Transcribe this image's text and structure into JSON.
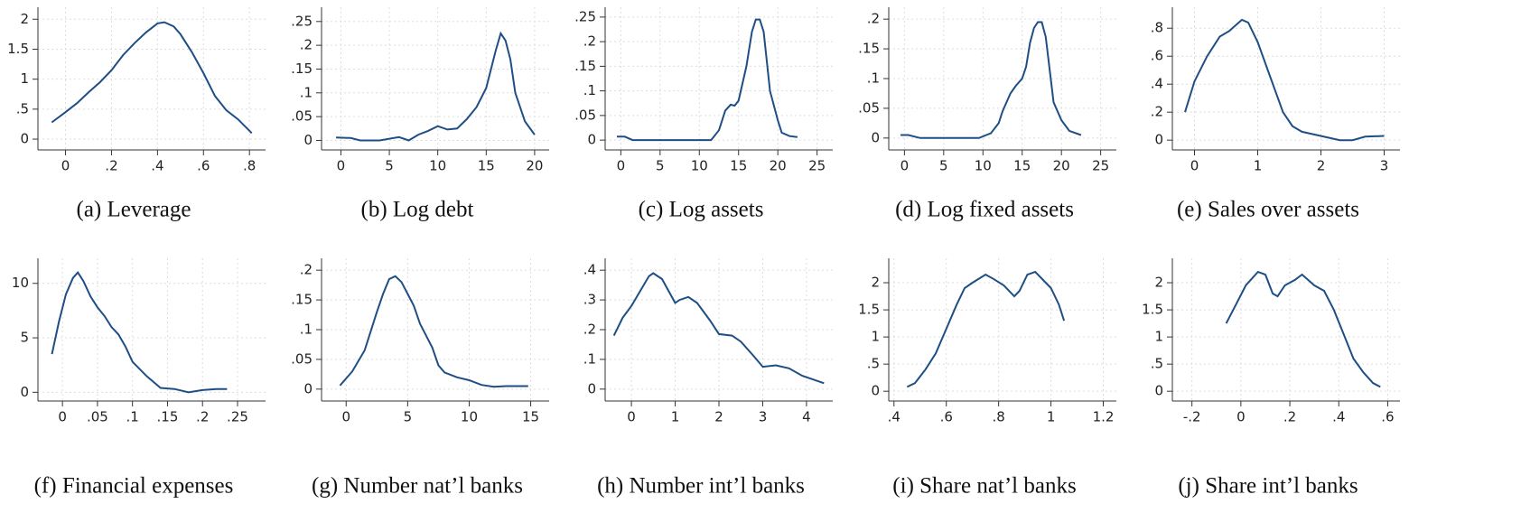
{
  "chart_data": [
    {
      "type": "line",
      "caption": "(a) Leverage",
      "color": "#1f4e85",
      "grid": true,
      "x": [
        -0.06,
        0,
        0.05,
        0.1,
        0.15,
        0.2,
        0.25,
        0.3,
        0.35,
        0.4,
        0.43,
        0.47,
        0.5,
        0.55,
        0.6,
        0.65,
        0.7,
        0.75,
        0.8,
        0.81
      ],
      "values": [
        0.28,
        0.45,
        0.6,
        0.78,
        0.95,
        1.15,
        1.4,
        1.6,
        1.78,
        1.93,
        1.95,
        1.88,
        1.75,
        1.45,
        1.1,
        0.72,
        0.48,
        0.33,
        0.14,
        0.1
      ],
      "xlim": [
        -0.12,
        0.87
      ],
      "ylim": [
        -0.18,
        2.2
      ],
      "xticks": [
        0,
        {
          "value": 0.2,
          "label": ".2"
        },
        {
          "value": 0.4,
          "label": ".4"
        },
        {
          "value": 0.6,
          "label": ".6"
        },
        {
          "value": 0.8,
          "label": ".8"
        }
      ],
      "yticks": [
        0,
        {
          "value": 0.5,
          "label": ".5"
        },
        1,
        1.5,
        2
      ]
    },
    {
      "type": "line",
      "caption": "(b) Log debt",
      "color": "#1f4e85",
      "grid": true,
      "x": [
        -0.5,
        1,
        2,
        4,
        6,
        7,
        8,
        9,
        10,
        11,
        12,
        13,
        14,
        15,
        16,
        16.5,
        17,
        17.5,
        18,
        19,
        20
      ],
      "values": [
        0.006,
        0.005,
        0,
        0,
        0.007,
        0,
        0.012,
        0.02,
        0.03,
        0.023,
        0.025,
        0.045,
        0.07,
        0.11,
        0.19,
        0.225,
        0.21,
        0.17,
        0.1,
        0.04,
        0.012
      ],
      "xlim": [
        -2,
        21.5
      ],
      "ylim": [
        -0.02,
        0.28
      ],
      "xticks": [
        0,
        5,
        10,
        15,
        20
      ],
      "yticks": [
        0,
        {
          "value": 0.05,
          "label": ".05"
        },
        {
          "value": 0.1,
          "label": ".1"
        },
        {
          "value": 0.15,
          "label": ".15"
        },
        {
          "value": 0.2,
          "label": ".2"
        },
        {
          "value": 0.25,
          "label": ".25"
        }
      ]
    },
    {
      "type": "line",
      "caption": "(c) Log assets",
      "color": "#1f4e85",
      "grid": true,
      "x": [
        -0.5,
        0.5,
        1.5,
        5,
        10,
        11.5,
        12.5,
        13.3,
        14,
        14.5,
        15,
        16,
        16.7,
        17.2,
        17.7,
        18.2,
        19,
        20,
        20.5,
        21.5,
        22.5
      ],
      "values": [
        0.007,
        0.007,
        0,
        0,
        0,
        0,
        0.02,
        0.06,
        0.072,
        0.07,
        0.08,
        0.15,
        0.22,
        0.245,
        0.245,
        0.22,
        0.1,
        0.04,
        0.015,
        0.008,
        0.006
      ],
      "xlim": [
        -2,
        27
      ],
      "ylim": [
        -0.02,
        0.27
      ],
      "xticks": [
        0,
        5,
        10,
        15,
        20,
        25
      ],
      "yticks": [
        0,
        {
          "value": 0.05,
          "label": ".05"
        },
        {
          "value": 0.1,
          "label": ".1"
        },
        {
          "value": 0.15,
          "label": ".15"
        },
        {
          "value": 0.2,
          "label": ".2"
        },
        {
          "value": 0.25,
          "label": ".25"
        }
      ]
    },
    {
      "type": "line",
      "caption": "(d) Log fixed assets",
      "color": "#1f4e85",
      "grid": true,
      "x": [
        -0.5,
        0.5,
        2,
        5,
        9.5,
        11,
        12,
        12.5,
        13.5,
        14.2,
        15,
        15.5,
        16,
        16.5,
        17,
        17.5,
        18,
        19,
        20,
        21,
        22.5
      ],
      "values": [
        0.005,
        0.005,
        0,
        0,
        0,
        0.008,
        0.025,
        0.045,
        0.075,
        0.088,
        0.1,
        0.12,
        0.16,
        0.185,
        0.195,
        0.195,
        0.17,
        0.06,
        0.03,
        0.012,
        0.005
      ],
      "xlim": [
        -2,
        27
      ],
      "ylim": [
        -0.02,
        0.22
      ],
      "xticks": [
        0,
        5,
        10,
        15,
        20,
        25
      ],
      "yticks": [
        0,
        {
          "value": 0.05,
          "label": ".05"
        },
        {
          "value": 0.1,
          "label": ".1"
        },
        {
          "value": 0.15,
          "label": ".15"
        },
        {
          "value": 0.2,
          "label": ".2"
        }
      ]
    },
    {
      "type": "line",
      "caption": "(e) Sales over assets",
      "color": "#1f4e85",
      "grid": true,
      "x": [
        -0.15,
        0,
        0.2,
        0.4,
        0.55,
        0.75,
        0.85,
        1,
        1.2,
        1.4,
        1.55,
        1.7,
        1.9,
        2.1,
        2.3,
        2.5,
        2.7,
        3
      ],
      "values": [
        0.2,
        0.42,
        0.6,
        0.74,
        0.78,
        0.86,
        0.84,
        0.7,
        0.45,
        0.2,
        0.1,
        0.06,
        0.04,
        0.02,
        0,
        0,
        0.025,
        0.03
      ],
      "xlim": [
        -0.35,
        3.25
      ],
      "ylim": [
        -0.07,
        0.95
      ],
      "xticks": [
        0,
        1,
        2,
        3
      ],
      "yticks": [
        0,
        {
          "value": 0.2,
          "label": ".2"
        },
        {
          "value": 0.4,
          "label": ".4"
        },
        {
          "value": 0.6,
          "label": ".6"
        },
        {
          "value": 0.8,
          "label": ".8"
        }
      ]
    },
    {
      "type": "line",
      "caption": "(f) Financial expenses",
      "color": "#1f4e85",
      "grid": true,
      "x": [
        -0.015,
        -0.005,
        0.005,
        0.015,
        0.022,
        0.03,
        0.04,
        0.05,
        0.06,
        0.07,
        0.08,
        0.09,
        0.1,
        0.12,
        0.14,
        0.16,
        0.18,
        0.2,
        0.22,
        0.235
      ],
      "values": [
        3.5,
        6.5,
        9,
        10.5,
        11,
        10.2,
        8.8,
        7.8,
        7,
        6,
        5.3,
        4.2,
        2.8,
        1.5,
        0.4,
        0.3,
        0,
        0.2,
        0.3,
        0.3
      ],
      "xlim": [
        -0.035,
        0.29
      ],
      "ylim": [
        -0.8,
        12.3
      ],
      "xticks": [
        0,
        {
          "value": 0.05,
          "label": ".05"
        },
        {
          "value": 0.1,
          "label": ".1"
        },
        {
          "value": 0.15,
          "label": ".15"
        },
        {
          "value": 0.2,
          "label": ".2"
        },
        {
          "value": 0.25,
          "label": ".25"
        }
      ],
      "yticks": [
        0,
        5,
        10
      ]
    },
    {
      "type": "line",
      "caption": "(g) Number nat’l banks",
      "color": "#1f4e85",
      "grid": true,
      "x": [
        -0.5,
        0.5,
        1.5,
        2.5,
        3,
        3.5,
        4,
        4.5,
        5,
        5.5,
        6,
        7,
        7.5,
        8,
        9,
        10,
        11,
        12,
        13,
        14.8
      ],
      "values": [
        0.006,
        0.03,
        0.065,
        0.13,
        0.16,
        0.185,
        0.19,
        0.18,
        0.16,
        0.14,
        0.11,
        0.07,
        0.04,
        0.028,
        0.02,
        0.015,
        0.007,
        0.004,
        0.005,
        0.005
      ],
      "xlim": [
        -2,
        16.5
      ],
      "ylim": [
        -0.02,
        0.22
      ],
      "xticks": [
        0,
        5,
        10,
        15
      ],
      "yticks": [
        0,
        {
          "value": 0.05,
          "label": ".05"
        },
        {
          "value": 0.1,
          "label": ".1"
        },
        {
          "value": 0.15,
          "label": ".15"
        },
        {
          "value": 0.2,
          "label": ".2"
        }
      ]
    },
    {
      "type": "line",
      "caption": "(h) Number int’l banks",
      "color": "#1f4e85",
      "grid": true,
      "x": [
        -0.4,
        -0.2,
        0,
        0.2,
        0.4,
        0.5,
        0.7,
        1,
        1.1,
        1.3,
        1.5,
        1.8,
        2,
        2.3,
        2.5,
        2.8,
        3,
        3.3,
        3.6,
        3.9,
        4.1,
        4.4
      ],
      "values": [
        0.18,
        0.24,
        0.28,
        0.33,
        0.38,
        0.39,
        0.37,
        0.29,
        0.3,
        0.31,
        0.29,
        0.23,
        0.185,
        0.18,
        0.16,
        0.11,
        0.075,
        0.08,
        0.07,
        0.045,
        0.035,
        0.02
      ],
      "xlim": [
        -0.6,
        4.6
      ],
      "ylim": [
        -0.04,
        0.44
      ],
      "xticks": [
        0,
        1,
        2,
        3,
        4
      ],
      "yticks": [
        0,
        {
          "value": 0.1,
          "label": ".1"
        },
        {
          "value": 0.2,
          "label": ".2"
        },
        {
          "value": 0.3,
          "label": ".3"
        },
        {
          "value": 0.4,
          "label": ".4"
        }
      ]
    },
    {
      "type": "line",
      "caption": "(i) Share nat’l banks",
      "color": "#1f4e85",
      "grid": true,
      "x": [
        0.45,
        0.48,
        0.52,
        0.56,
        0.6,
        0.64,
        0.67,
        0.7,
        0.75,
        0.78,
        0.82,
        0.86,
        0.88,
        0.91,
        0.94,
        0.97,
        1,
        1.03,
        1.05
      ],
      "values": [
        0.08,
        0.15,
        0.4,
        0.7,
        1.15,
        1.6,
        1.9,
        2,
        2.15,
        2.07,
        1.95,
        1.75,
        1.85,
        2.15,
        2.2,
        2.05,
        1.9,
        1.6,
        1.3
      ],
      "xlim": [
        0.38,
        1.25
      ],
      "ylim": [
        -0.18,
        2.45
      ],
      "xticks": [
        {
          "value": 0.4,
          "label": ".4"
        },
        {
          "value": 0.6,
          "label": ".6"
        },
        {
          "value": 0.8,
          "label": ".8"
        },
        1,
        1.2
      ],
      "yticks": [
        0,
        {
          "value": 0.5,
          "label": ".5"
        },
        1,
        1.5,
        2
      ]
    },
    {
      "type": "line",
      "caption": "(j) Share int’l banks",
      "color": "#1f4e85",
      "grid": true,
      "x": [
        -0.06,
        -0.02,
        0.02,
        0.07,
        0.1,
        0.13,
        0.15,
        0.18,
        0.22,
        0.25,
        0.3,
        0.34,
        0.38,
        0.42,
        0.46,
        0.5,
        0.54,
        0.57
      ],
      "values": [
        1.25,
        1.6,
        1.95,
        2.2,
        2.15,
        1.8,
        1.75,
        1.95,
        2.05,
        2.15,
        1.95,
        1.85,
        1.5,
        1.05,
        0.6,
        0.35,
        0.15,
        0.08
      ],
      "xlim": [
        -0.28,
        0.65
      ],
      "ylim": [
        -0.18,
        2.45
      ],
      "xticks": [
        {
          "value": -0.2,
          "label": "-.2"
        },
        0,
        {
          "value": 0.2,
          "label": ".2"
        },
        {
          "value": 0.4,
          "label": ".4"
        },
        {
          "value": 0.6,
          "label": ".6"
        }
      ],
      "yticks": [
        0,
        {
          "value": 0.5,
          "label": ".5"
        },
        1,
        1.5,
        2
      ]
    }
  ]
}
